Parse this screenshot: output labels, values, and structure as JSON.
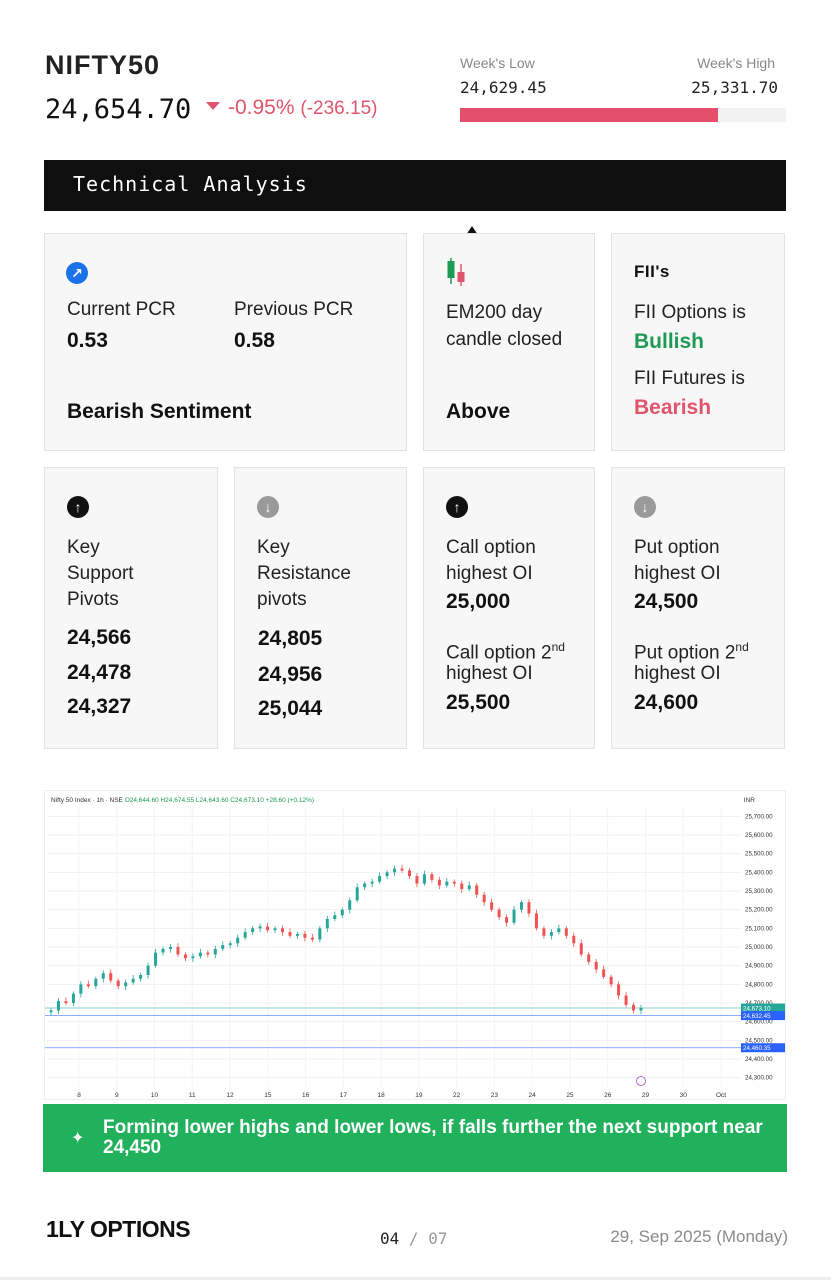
{
  "header": {
    "ticker": "NIFTY50",
    "price": "24,654.70",
    "change_pct": "-0.95%",
    "change_abs": "(-236.15)",
    "week_low_label": "Week's Low",
    "week_high_label": "Week's High",
    "week_low": "24,629.45",
    "week_high": "25,331.70",
    "week_range_fill_fraction": 0.79,
    "colors": {
      "negative": "#e0556b",
      "range_bar": "#e4506b"
    }
  },
  "banner": {
    "title": "Technical Analysis"
  },
  "pcr_card": {
    "icon": "arrow-up-right-icon",
    "current_label": "Current PCR",
    "current_value": "0.53",
    "previous_label": "Previous PCR",
    "previous_value": "0.58",
    "sentiment": "Bearish Sentiment"
  },
  "em200_card": {
    "icon": "candlestick-icon",
    "label_line1": "EM200 day",
    "label_line2": "candle closed",
    "value": "Above"
  },
  "fii_card": {
    "title": "FII's",
    "options_label": "FII Options is",
    "options_value": "Bullish",
    "futures_label": "FII Futures is",
    "futures_value": "Bearish",
    "colors": {
      "bullish": "#1f9a55",
      "bearish": "#e0556b"
    }
  },
  "support_card": {
    "icon": "arrow-up-circle-icon",
    "label_line1": "Key",
    "label_line2": "Support",
    "label_line3": "Pivots",
    "values": [
      "24,566",
      "24,478",
      "24,327"
    ]
  },
  "resistance_card": {
    "icon": "arrow-down-circle-icon",
    "label_line1": "Key",
    "label_line2": "Resistance",
    "label_line3": "pivots",
    "values": [
      "24,805",
      "24,956",
      "25,044"
    ]
  },
  "call_card": {
    "icon": "arrow-up-circle-icon",
    "label1_line1": "Call option",
    "label1_line2": "highest OI",
    "value1": "25,000",
    "label2_line1": "Call option 2",
    "label2_sup": "nd",
    "label2_line2": "highest OI",
    "value2": "25,500"
  },
  "put_card": {
    "icon": "arrow-down-circle-icon",
    "label1_line1": "Put option",
    "label1_line2": "highest OI",
    "value1": "24,500",
    "label2_line1": "Put option 2",
    "label2_sup": "nd",
    "label2_line2": "highest OI",
    "value2": "24,600"
  },
  "chart_data": {
    "type": "candlestick",
    "header": {
      "symbol": "Nifty 50 Index · 1h · NSE",
      "ohlc": "O24,644.60 H24,674.55 L24,643.60 C24,673.10 +28.60 (+0.12%)"
    },
    "unit": "INR",
    "ylim": [
      24250,
      25750
    ],
    "y_ticks": [
      "25,700.00",
      "25,600.00",
      "25,500.00",
      "25,400.00",
      "25,300.00",
      "25,200.00",
      "25,100.00",
      "25,000.00",
      "24,900.00",
      "24,800.00",
      "24,700.00",
      "24,600.00",
      "24,500.00",
      "24,400.00",
      "24,300.00"
    ],
    "x_ticks": [
      "8",
      "9",
      "10",
      "11",
      "12",
      "15",
      "16",
      "17",
      "18",
      "19",
      "22",
      "23",
      "24",
      "25",
      "26",
      "29",
      "30",
      "Oct"
    ],
    "price_labels": [
      {
        "value": "24,673.10",
        "color": "#26a69a"
      },
      {
        "value": "24,632.45",
        "color": "#2962ff"
      },
      {
        "value": "24,460.35",
        "color": "#2962ff"
      }
    ],
    "closes": [
      24660,
      24710,
      24700,
      24750,
      24800,
      24790,
      24830,
      24860,
      24820,
      24790,
      24810,
      24830,
      24850,
      24900,
      24970,
      24990,
      25000,
      24960,
      24940,
      24950,
      24970,
      24960,
      24990,
      25010,
      25020,
      25050,
      25080,
      25100,
      25110,
      25090,
      25100,
      25080,
      25060,
      25070,
      25050,
      25040,
      25100,
      25150,
      25170,
      25200,
      25250,
      25320,
      25340,
      25350,
      25380,
      25400,
      25420,
      25410,
      25380,
      25340,
      25390,
      25360,
      25330,
      25350,
      25340,
      25310,
      25330,
      25280,
      25240,
      25200,
      25160,
      25130,
      25200,
      25240,
      25180,
      25100,
      25060,
      25080,
      25100,
      25060,
      25020,
      24960,
      24920,
      24880,
      24840,
      24800,
      24740,
      24690,
      24660,
      24673
    ],
    "colors": {
      "up": "#26a69a",
      "down": "#ef5350"
    }
  },
  "callout": {
    "icon": "sparkle-icon",
    "text": "Forming lower highs and lower lows, if falls further the next support near 24,450"
  },
  "footer": {
    "logo_text": "1LY OPTIONS",
    "page_current": "04",
    "page_sep": "/",
    "page_total": "07",
    "date": "29, Sep 2025 (Monday)"
  }
}
